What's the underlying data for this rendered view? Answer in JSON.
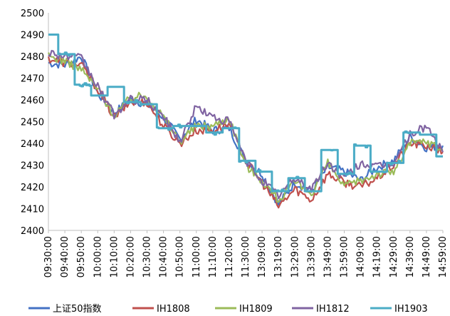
{
  "chart_data": {
    "type": "line",
    "title": "",
    "xlabel": "",
    "ylabel": "",
    "ylim": [
      2400,
      2500
    ],
    "yticks": [
      2400,
      2410,
      2420,
      2430,
      2440,
      2450,
      2460,
      2470,
      2480,
      2490,
      2500
    ],
    "grid": false,
    "legend_position": "bottom",
    "x_ticks": [
      "09:30:00",
      "09:40:00",
      "09:50:00",
      "10:00:00",
      "10:10:00",
      "10:20:00",
      "10:30:00",
      "10:40:00",
      "10:50:00",
      "11:00:00",
      "11:10:00",
      "11:20:00",
      "11:30:00",
      "13:09:00",
      "13:19:00",
      "13:29:00",
      "13:39:00",
      "13:49:00",
      "13:59:00",
      "14:09:00",
      "14:19:00",
      "14:29:00",
      "14:39:00",
      "14:49:00",
      "14:59:00"
    ],
    "series": [
      {
        "name": "上证50指数",
        "color": "#4472C4",
        "values": [
          2477,
          2476,
          2480,
          2463,
          2454,
          2460,
          2458,
          2452,
          2442,
          2451,
          2446,
          2447,
          2432,
          2426,
          2412,
          2422,
          2418,
          2429,
          2427,
          2423,
          2429,
          2432,
          2443,
          2438,
          2439
        ]
      },
      {
        "name": "IH1808",
        "color": "#C0504D",
        "values": [
          2479,
          2477,
          2476,
          2465,
          2452,
          2459,
          2459,
          2448,
          2440,
          2446,
          2446,
          2449,
          2432,
          2422,
          2411,
          2419,
          2414,
          2426,
          2422,
          2420,
          2424,
          2430,
          2440,
          2439,
          2436
        ]
      },
      {
        "name": "IH1809",
        "color": "#9BBB59",
        "values": [
          2480,
          2478,
          2474,
          2465,
          2453,
          2461,
          2462,
          2452,
          2441,
          2448,
          2448,
          2452,
          2430,
          2423,
          2414,
          2422,
          2417,
          2431,
          2420,
          2423,
          2426,
          2427,
          2440,
          2441,
          2437
        ]
      },
      {
        "name": "IH1812",
        "color": "#8064A2",
        "values": [
          2482,
          2480,
          2479,
          2466,
          2453,
          2460,
          2460,
          2452,
          2441,
          2457,
          2452,
          2450,
          2432,
          2423,
          2416,
          2424,
          2419,
          2431,
          2424,
          2431,
          2429,
          2431,
          2444,
          2448,
          2436
        ]
      },
      {
        "name": "IH1903",
        "color": "#4BACC6",
        "values": [
          2490,
          2481,
          2467,
          2462,
          2466,
          2459,
          2458,
          2447,
          2448,
          2448,
          2445,
          2447,
          2432,
          2427,
          2418,
          2424,
          2418,
          2437,
          2426,
          2439,
          2427,
          2431,
          2445,
          2444,
          2434
        ]
      }
    ]
  }
}
